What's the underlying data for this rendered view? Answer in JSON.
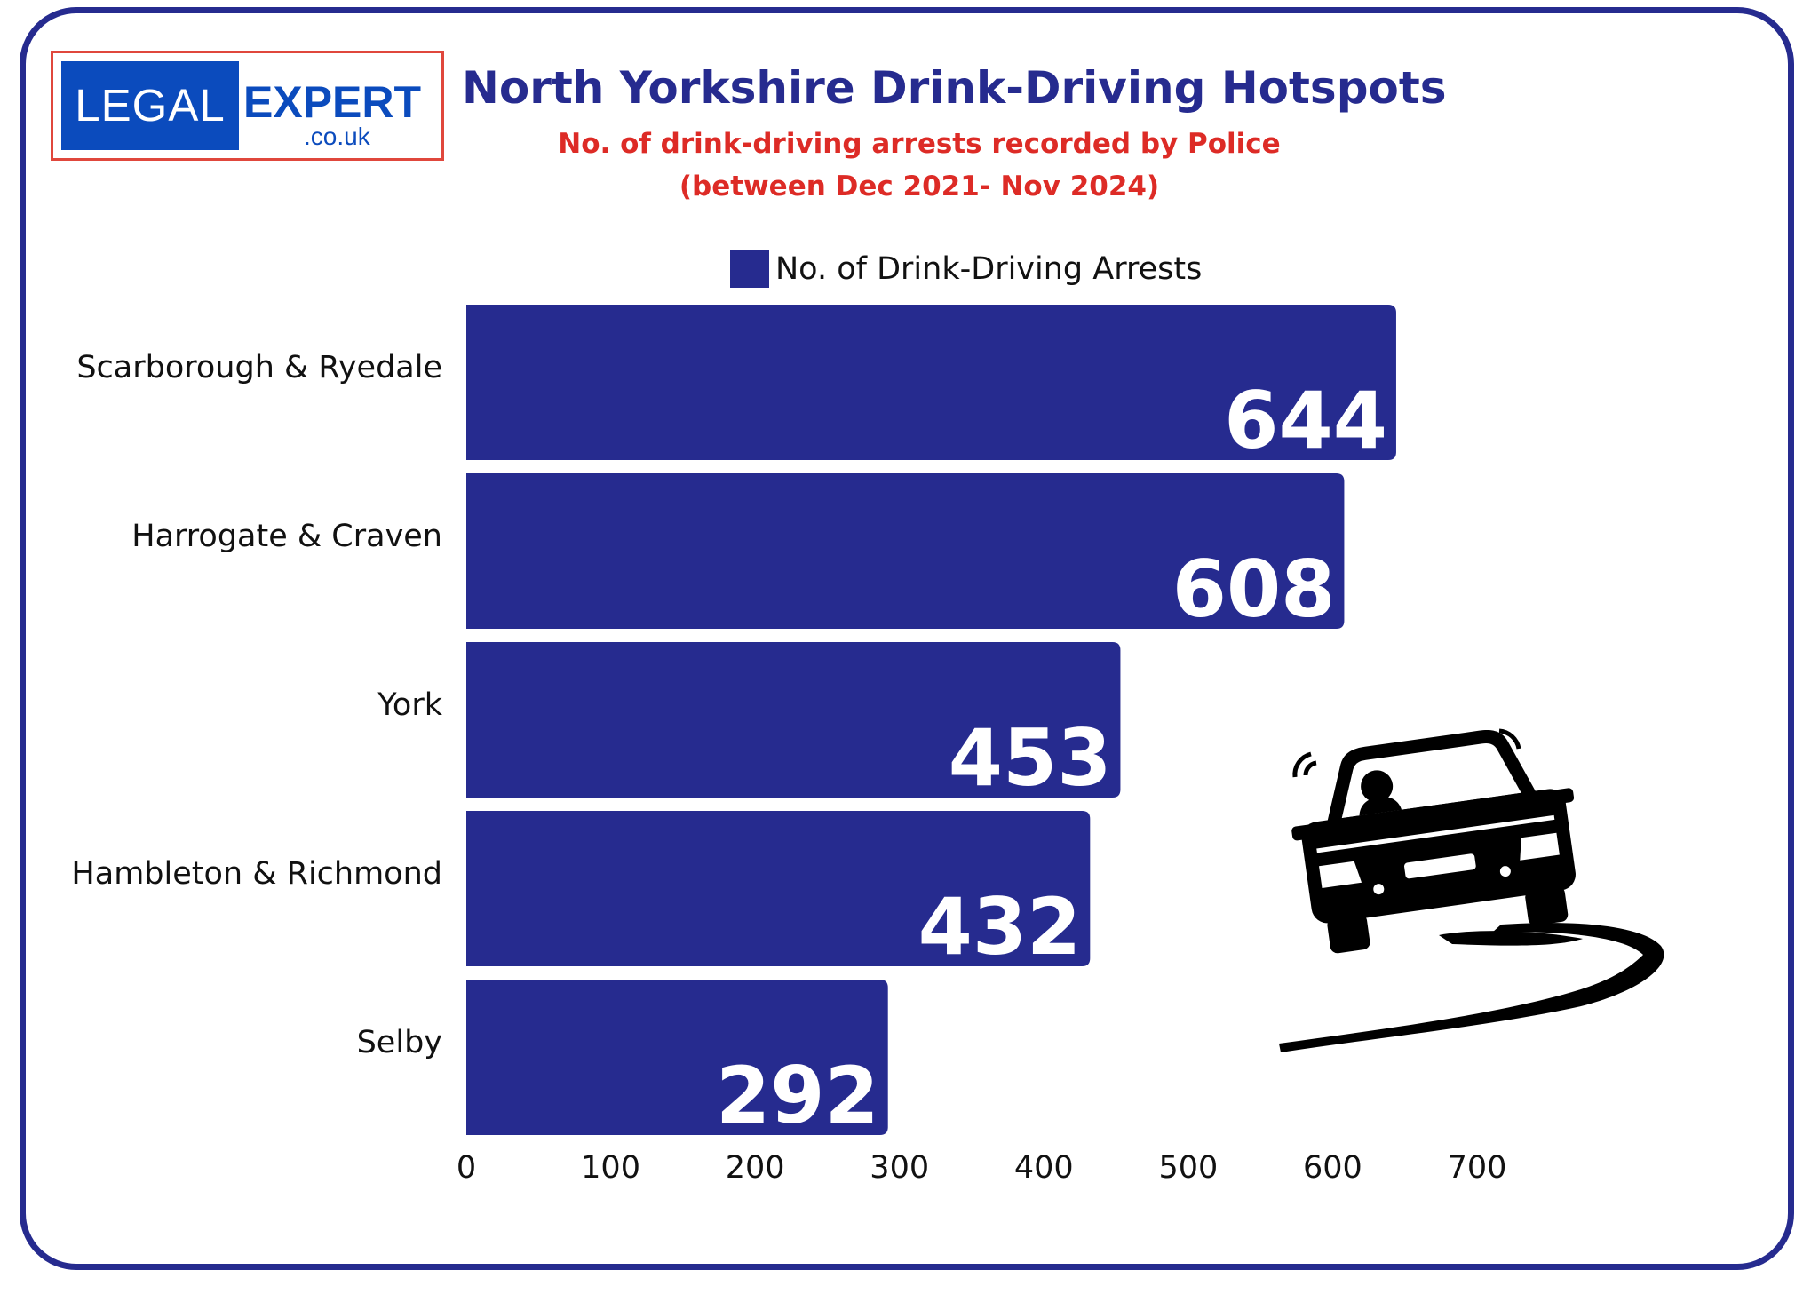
{
  "logo": {
    "left_text": "LEGAL",
    "right_text": "EXPERT",
    "domain_text": ".co.uk"
  },
  "header": {
    "title": "North Yorkshire Drink-Driving Hotspots",
    "subtitle_line1": "No. of drink-driving arrests recorded by Police",
    "subtitle_line2": "(between Dec 2021- Nov 2024)"
  },
  "colors": {
    "bar": "#262b8f",
    "title": "#262b8f",
    "subtitle": "#dd2b26",
    "logo_blue": "#0b4bbd",
    "logo_border": "#e0473c"
  },
  "icons": {
    "illustration": "swerving-car-icon"
  },
  "chart_data": {
    "type": "bar",
    "orientation": "horizontal",
    "categories": [
      "Scarborough & Ryedale",
      "Harrogate & Craven",
      "York",
      "Hambleton & Richmond",
      "Selby"
    ],
    "series": [
      {
        "name": "No. of Drink-Driving Arrests",
        "values": [
          644,
          608,
          453,
          432,
          292
        ]
      }
    ],
    "xlim": [
      0,
      700
    ],
    "x_ticks": [
      0,
      100,
      200,
      300,
      400,
      500,
      600,
      700
    ],
    "data_labels": true,
    "legend": "top",
    "grid": false
  }
}
